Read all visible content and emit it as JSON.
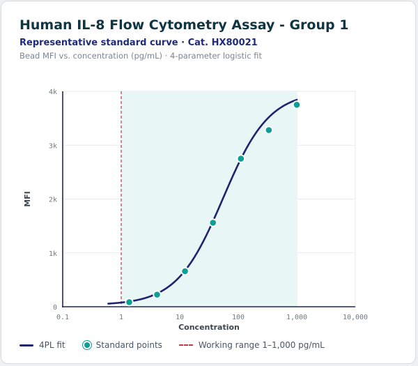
{
  "header": {
    "title": "Human IL-8 Flow Cytometry Assay - Group 1",
    "subtitle": "Representative standard curve · Cat. HX80021",
    "caption": "Bead MFI vs. concentration (pg/mL) · 4-parameter logistic fit"
  },
  "colors": {
    "title": "#0f3542",
    "fit_line": "#1f2370",
    "points": "#0e9e95",
    "working_range_line": "#c0394b",
    "working_range_fill": "#e8f6f5"
  },
  "chart_data": {
    "type": "scatter",
    "xlabel": "Concentration",
    "ylabel": "MFI",
    "xscale": "log",
    "xlim": [
      0.1,
      10000
    ],
    "ylim": [
      0,
      4000
    ],
    "x_ticks": [
      0.1,
      1,
      10,
      100,
      1000,
      10000
    ],
    "x_tick_labels": [
      "0.1",
      "1",
      "10",
      "100",
      "1,000",
      "10,000"
    ],
    "y_ticks": [
      0,
      1000,
      2000,
      3000,
      4000
    ],
    "y_tick_labels": [
      "0",
      "1k",
      "2k",
      "3k",
      "4k"
    ],
    "grid": true,
    "working_range": [
      1,
      1000
    ],
    "fit_4pl": {
      "bottom": 30,
      "top": 4000,
      "ec50": 55,
      "hill": 1.1,
      "x_range": [
        0.6,
        1000
      ]
    },
    "series": [
      {
        "name": "Standard points",
        "points": [
          {
            "x": 1.37,
            "y": 85
          },
          {
            "x": 4.1,
            "y": 225
          },
          {
            "x": 12.3,
            "y": 660
          },
          {
            "x": 37,
            "y": 1560
          },
          {
            "x": 111,
            "y": 2750
          },
          {
            "x": 333,
            "y": 3280
          },
          {
            "x": 1000,
            "y": 3750
          }
        ]
      }
    ],
    "legend_position": "bottom-left",
    "legend": {
      "fit": "4PL fit",
      "points": "Standard points",
      "range": "Working range 1–1,000 pg/mL"
    }
  }
}
